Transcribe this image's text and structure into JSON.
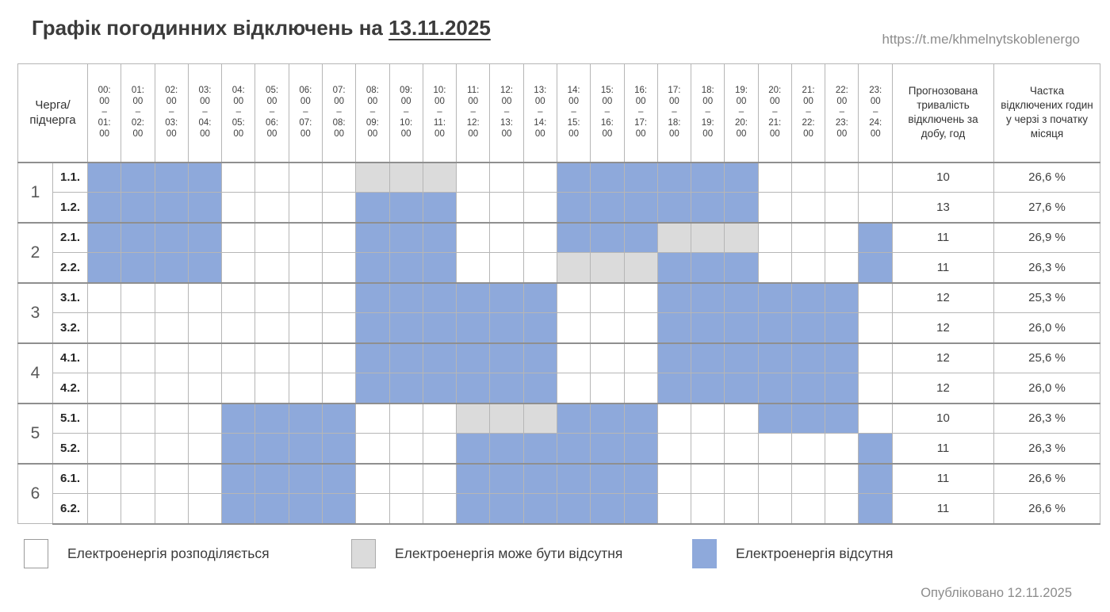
{
  "title": {
    "prefix": "Графік погодинних відключень на ",
    "date": "13.11.2025"
  },
  "source_url": "https://t.me/khmelnytskoblenergo",
  "published": "Опубліковано 12.11.2025",
  "colors": {
    "absent": "#8EA9DB",
    "maybe": "#DBDBDB",
    "distributed": "#FFFFFF"
  },
  "legend": [
    {
      "state": "distributed",
      "label": "Електроенергія розподіляється"
    },
    {
      "state": "maybe",
      "label": "Електроенергія може бути відсутня"
    },
    {
      "state": "absent",
      "label": "Електроенергія відсутня"
    }
  ],
  "table": {
    "corner_header": "Черга/підчерга",
    "duration_header": "Прогнозована тривалість відключень за добу, год",
    "share_header": "Частка відключених годин у черзі з початку місяця",
    "time_separator": "–"
  },
  "chart_data": {
    "type": "heatmap",
    "title": "Графік погодинних відключень на 13.11.2025",
    "state_codes": {
      "0": "Електроенергія розподіляється",
      "1": "Електроенергія може бути відсутня",
      "2": "Електроенергія відсутня"
    },
    "hours": [
      {
        "start": "00:00",
        "end": "01:00"
      },
      {
        "start": "01:00",
        "end": "02:00"
      },
      {
        "start": "02:00",
        "end": "03:00"
      },
      {
        "start": "03:00",
        "end": "04:00"
      },
      {
        "start": "04:00",
        "end": "05:00"
      },
      {
        "start": "05:00",
        "end": "06:00"
      },
      {
        "start": "06:00",
        "end": "07:00"
      },
      {
        "start": "07:00",
        "end": "08:00"
      },
      {
        "start": "08:00",
        "end": "09:00"
      },
      {
        "start": "09:00",
        "end": "10:00"
      },
      {
        "start": "10:00",
        "end": "11:00"
      },
      {
        "start": "11:00",
        "end": "12:00"
      },
      {
        "start": "12:00",
        "end": "13:00"
      },
      {
        "start": "13:00",
        "end": "14:00"
      },
      {
        "start": "14:00",
        "end": "15:00"
      },
      {
        "start": "15:00",
        "end": "16:00"
      },
      {
        "start": "16:00",
        "end": "17:00"
      },
      {
        "start": "17:00",
        "end": "18:00"
      },
      {
        "start": "18:00",
        "end": "19:00"
      },
      {
        "start": "19:00",
        "end": "20:00"
      },
      {
        "start": "20:00",
        "end": "21:00"
      },
      {
        "start": "21:00",
        "end": "22:00"
      },
      {
        "start": "22:00",
        "end": "23:00"
      },
      {
        "start": "23:00",
        "end": "24:00"
      }
    ],
    "queues": [
      {
        "number": "1",
        "rows": [
          {
            "label": "1.1.",
            "cells": [
              2,
              2,
              2,
              2,
              0,
              0,
              0,
              0,
              1,
              1,
              1,
              0,
              0,
              0,
              2,
              2,
              2,
              2,
              2,
              2,
              0,
              0,
              0,
              0
            ],
            "duration": "10",
            "share": "26,6 %"
          },
          {
            "label": "1.2.",
            "cells": [
              2,
              2,
              2,
              2,
              0,
              0,
              0,
              0,
              2,
              2,
              2,
              0,
              0,
              0,
              2,
              2,
              2,
              2,
              2,
              2,
              0,
              0,
              0,
              0
            ],
            "duration": "13",
            "share": "27,6 %"
          }
        ]
      },
      {
        "number": "2",
        "rows": [
          {
            "label": "2.1.",
            "cells": [
              2,
              2,
              2,
              2,
              0,
              0,
              0,
              0,
              2,
              2,
              2,
              0,
              0,
              0,
              2,
              2,
              2,
              1,
              1,
              1,
              0,
              0,
              0,
              2
            ],
            "duration": "11",
            "share": "26,9 %"
          },
          {
            "label": "2.2.",
            "cells": [
              2,
              2,
              2,
              2,
              0,
              0,
              0,
              0,
              2,
              2,
              2,
              0,
              0,
              0,
              1,
              1,
              1,
              2,
              2,
              2,
              0,
              0,
              0,
              2
            ],
            "duration": "11",
            "share": "26,3 %"
          }
        ]
      },
      {
        "number": "3",
        "rows": [
          {
            "label": "3.1.",
            "cells": [
              0,
              0,
              0,
              0,
              0,
              0,
              0,
              0,
              2,
              2,
              2,
              2,
              2,
              2,
              0,
              0,
              0,
              2,
              2,
              2,
              2,
              2,
              2,
              0
            ],
            "duration": "12",
            "share": "25,3 %"
          },
          {
            "label": "3.2.",
            "cells": [
              0,
              0,
              0,
              0,
              0,
              0,
              0,
              0,
              2,
              2,
              2,
              2,
              2,
              2,
              0,
              0,
              0,
              2,
              2,
              2,
              2,
              2,
              2,
              0
            ],
            "duration": "12",
            "share": "26,0 %"
          }
        ]
      },
      {
        "number": "4",
        "rows": [
          {
            "label": "4.1.",
            "cells": [
              0,
              0,
              0,
              0,
              0,
              0,
              0,
              0,
              2,
              2,
              2,
              2,
              2,
              2,
              0,
              0,
              0,
              2,
              2,
              2,
              2,
              2,
              2,
              0
            ],
            "duration": "12",
            "share": "25,6 %"
          },
          {
            "label": "4.2.",
            "cells": [
              0,
              0,
              0,
              0,
              0,
              0,
              0,
              0,
              2,
              2,
              2,
              2,
              2,
              2,
              0,
              0,
              0,
              2,
              2,
              2,
              2,
              2,
              2,
              0
            ],
            "duration": "12",
            "share": "26,0 %"
          }
        ]
      },
      {
        "number": "5",
        "rows": [
          {
            "label": "5.1.",
            "cells": [
              0,
              0,
              0,
              0,
              2,
              2,
              2,
              2,
              0,
              0,
              0,
              1,
              1,
              1,
              2,
              2,
              2,
              0,
              0,
              0,
              2,
              2,
              2,
              0
            ],
            "duration": "10",
            "share": "26,3 %"
          },
          {
            "label": "5.2.",
            "cells": [
              0,
              0,
              0,
              0,
              2,
              2,
              2,
              2,
              0,
              0,
              0,
              2,
              2,
              2,
              2,
              2,
              2,
              0,
              0,
              0,
              0,
              0,
              0,
              2
            ],
            "duration": "11",
            "share": "26,3 %"
          }
        ]
      },
      {
        "number": "6",
        "rows": [
          {
            "label": "6.1.",
            "cells": [
              0,
              0,
              0,
              0,
              2,
              2,
              2,
              2,
              0,
              0,
              0,
              2,
              2,
              2,
              2,
              2,
              2,
              0,
              0,
              0,
              0,
              0,
              0,
              2
            ],
            "duration": "11",
            "share": "26,6 %"
          },
          {
            "label": "6.2.",
            "cells": [
              0,
              0,
              0,
              0,
              2,
              2,
              2,
              2,
              0,
              0,
              0,
              2,
              2,
              2,
              2,
              2,
              2,
              0,
              0,
              0,
              0,
              0,
              0,
              2
            ],
            "duration": "11",
            "share": "26,6 %"
          }
        ]
      }
    ]
  }
}
